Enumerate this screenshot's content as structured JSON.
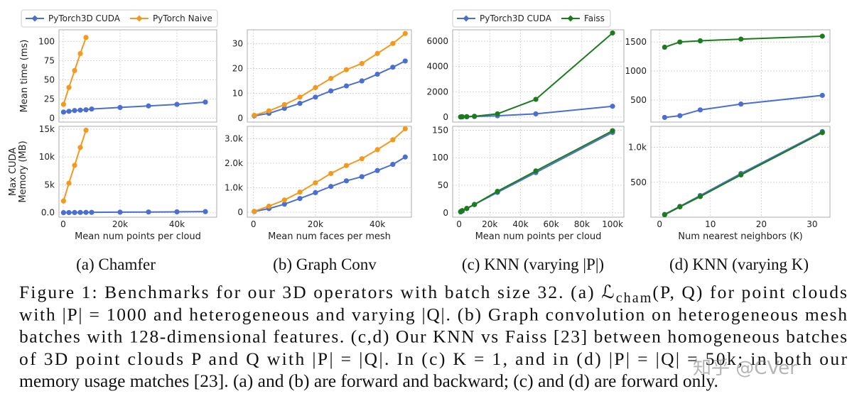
{
  "chart_data": [
    {
      "type": "line",
      "ylabel": "Mean time (ms)",
      "legend": true,
      "grid": true,
      "xlim": [
        -1500,
        54000
      ],
      "ylim": [
        -5,
        115
      ],
      "yticks": [
        0,
        25,
        50,
        75,
        100
      ],
      "series": [
        {
          "name": "PyTorch3D CUDA",
          "color": "#4a6fd0",
          "x": [
            100,
            2000,
            4000,
            6000,
            8000,
            10000,
            20000,
            30000,
            40000,
            50000
          ],
          "values": [
            8,
            9,
            10,
            10.5,
            11,
            12,
            14,
            16,
            18,
            21
          ]
        },
        {
          "name": "PyTorch Naive",
          "color": "#f39a1e",
          "x": [
            100,
            2000,
            4000,
            6000,
            8000
          ],
          "values": [
            18,
            40,
            62,
            84,
            105
          ]
        }
      ]
    },
    {
      "type": "line",
      "ylabel": [
        "Max CUDA",
        "Memory (MB)"
      ],
      "xlabel": "Mean num points per cloud",
      "grid": true,
      "xlim": [
        -1500,
        54000
      ],
      "ylim": [
        -800,
        15500
      ],
      "xticks": [
        0,
        {
          "value": 20000,
          "label": "20k"
        },
        {
          "value": 40000,
          "label": "40k"
        }
      ],
      "yticks": [
        {
          "value": 0,
          "label": "0.0"
        },
        {
          "value": 5000,
          "label": "5k"
        },
        {
          "value": 10000,
          "label": "10k"
        },
        {
          "value": 15000,
          "label": "15k"
        }
      ],
      "series": [
        {
          "name": "PyTorch3D CUDA",
          "color": "#4a6fd0",
          "x": [
            100,
            2000,
            4000,
            6000,
            8000,
            10000,
            20000,
            30000,
            40000,
            50000
          ],
          "values": [
            20,
            30,
            40,
            50,
            60,
            70,
            100,
            130,
            160,
            200
          ]
        },
        {
          "name": "PyTorch Naive",
          "color": "#f39a1e",
          "x": [
            100,
            2000,
            4000,
            6000,
            8000
          ],
          "values": [
            2100,
            5300,
            8500,
            11700,
            14800
          ]
        }
      ]
    },
    {
      "type": "line",
      "grid": true,
      "xlim": [
        -2000,
        51000
      ],
      "ylim": [
        -1.5,
        35.5
      ],
      "yticks": [
        0,
        10,
        20,
        30
      ],
      "series": [
        {
          "name": "PyTorch3D CUDA",
          "color": "#4a6fd0",
          "x": [
            250,
            5000,
            10000,
            15000,
            20000,
            25000,
            30000,
            35000,
            40000,
            45000,
            49000
          ],
          "values": [
            1,
            2,
            4,
            6,
            8.5,
            11,
            13,
            15,
            17.7,
            20.5,
            23
          ]
        },
        {
          "name": "PyTorch Naive",
          "color": "#f39a1e",
          "x": [
            250,
            5000,
            10000,
            15000,
            20000,
            25000,
            30000,
            35000,
            40000,
            45000,
            49000
          ],
          "values": [
            1.2,
            3,
            5.5,
            8.5,
            12.3,
            16,
            19.5,
            22,
            26,
            30,
            34
          ]
        }
      ]
    },
    {
      "type": "line",
      "xlabel": "Mean num faces per mesh",
      "grid": true,
      "xlim": [
        -2000,
        51000
      ],
      "ylim": [
        -200,
        3500
      ],
      "xticks": [
        0,
        {
          "value": 20000,
          "label": "20k"
        },
        {
          "value": 40000,
          "label": "40k"
        }
      ],
      "yticks": [
        0,
        {
          "value": 1000,
          "label": "1.0k"
        },
        {
          "value": 2000,
          "label": "2.0k"
        },
        {
          "value": 3000,
          "label": "3.0k"
        }
      ],
      "series": [
        {
          "name": "PyTorch3D CUDA",
          "color": "#4a6fd0",
          "x": [
            250,
            5000,
            10000,
            15000,
            20000,
            25000,
            30000,
            35000,
            40000,
            45000,
            49000
          ],
          "values": [
            30,
            150,
            330,
            560,
            800,
            1050,
            1280,
            1450,
            1700,
            1950,
            2250
          ]
        },
        {
          "name": "PyTorch Naive",
          "color": "#f39a1e",
          "x": [
            250,
            5000,
            10000,
            15000,
            20000,
            25000,
            30000,
            35000,
            40000,
            45000,
            49000
          ],
          "values": [
            40,
            250,
            500,
            820,
            1200,
            1580,
            1900,
            2180,
            2550,
            2950,
            3400
          ]
        }
      ]
    },
    {
      "type": "line",
      "legend": true,
      "grid": true,
      "xlim": [
        -4200,
        107400
      ],
      "ylim": [
        -400,
        6900
      ],
      "yticks": [
        0,
        2000,
        4000,
        6000
      ],
      "series": [
        {
          "name": "PyTorch3D CUDA",
          "color": "#4a6fd0",
          "x": [
            1000,
            2000,
            5000,
            10000,
            25000,
            50000,
            100000
          ],
          "values": [
            5,
            10,
            20,
            40,
            100,
            250,
            850
          ]
        },
        {
          "name": "Faiss",
          "color": "#1b7c1b",
          "x": [
            1000,
            2000,
            5000,
            10000,
            25000,
            50000,
            100000
          ],
          "values": [
            10,
            20,
            30,
            60,
            250,
            1400,
            6650
          ]
        }
      ]
    },
    {
      "type": "line",
      "xlabel": "Mean num points per cloud",
      "grid": true,
      "xlim": [
        -4200,
        107400
      ],
      "ylim": [
        -8,
        157
      ],
      "xticks": [
        0,
        {
          "value": 20000,
          "label": "20k"
        },
        {
          "value": 40000,
          "label": "40k"
        },
        {
          "value": 60000,
          "label": "60k"
        },
        {
          "value": 80000,
          "label": "80k"
        },
        {
          "value": 100000,
          "label": "100k"
        }
      ],
      "yticks": [
        0,
        50,
        100,
        150
      ],
      "series": [
        {
          "name": "PyTorch3D CUDA",
          "color": "#4a6fd0",
          "x": [
            1000,
            2000,
            5000,
            10000,
            25000,
            50000,
            100000
          ],
          "values": [
            1.5,
            3,
            7.5,
            15,
            37,
            73,
            146
          ]
        },
        {
          "name": "Faiss",
          "color": "#1b7c1b",
          "x": [
            1000,
            2000,
            5000,
            10000,
            25000,
            50000,
            100000
          ],
          "values": [
            2,
            4,
            8,
            15,
            39,
            76,
            149
          ]
        }
      ]
    },
    {
      "type": "line",
      "grid": true,
      "xlim": [
        -1.7,
        33.5
      ],
      "ylim": [
        120,
        1710
      ],
      "yticks": [
        500,
        1000,
        1500
      ],
      "series": [
        {
          "name": "PyTorch3D CUDA",
          "color": "#4a6fd0",
          "x": [
            1,
            4,
            8,
            16,
            32
          ],
          "values": [
            200,
            230,
            330,
            430,
            580
          ]
        },
        {
          "name": "Faiss",
          "color": "#1b7c1b",
          "x": [
            1,
            4,
            8,
            16,
            32
          ],
          "values": [
            1410,
            1500,
            1520,
            1550,
            1600
          ]
        }
      ]
    },
    {
      "type": "line",
      "xlabel": "Num nearest neighbors (K)",
      "grid": true,
      "xlim": [
        -1.7,
        33.5
      ],
      "ylim": [
        0,
        1300
      ],
      "xticks": [
        0,
        10,
        20,
        30
      ],
      "yticks": [
        500,
        {
          "value": 1000,
          "label": "1.0k"
        }
      ],
      "series": [
        {
          "name": "PyTorch3D CUDA",
          "color": "#4a6fd0",
          "x": [
            1,
            4,
            8,
            16,
            32
          ],
          "values": [
            40,
            155,
            310,
            625,
            1225
          ]
        },
        {
          "name": "Faiss",
          "color": "#1b7c1b",
          "x": [
            1,
            4,
            8,
            16,
            32
          ],
          "values": [
            35,
            148,
            295,
            605,
            1210
          ]
        }
      ]
    }
  ],
  "subcaptions": [
    "(a) Chamfer",
    "(b) Graph Conv",
    "(c) KNN (varying |P|)",
    "(d) KNN (varying K)"
  ],
  "caption_lines": [
    [
      "Figure 1: Benchmarks for our 3D operators with batch size 32. (a) ℒ",
      {
        "sub": "cham"
      },
      "(P, Q) for point clouds"
    ],
    [
      "with |P| = 1000 and heterogeneous and varying |Q|. (b) Graph convolution on heterogeneous mesh"
    ],
    [
      "batches with 128-dimensional features. (c,d) Our KNN vs Faiss [23] between homogeneous batches"
    ],
    [
      "of 3D point clouds P and Q with |P| = |Q|. In (c) K = 1, and in (d) |P| = |Q| = 50k; in both our"
    ],
    [
      "memory usage matches [23]. (a) and (b) are forward and backward; (c) and (d) are forward only."
    ]
  ],
  "watermark": "知乎 @CVer"
}
